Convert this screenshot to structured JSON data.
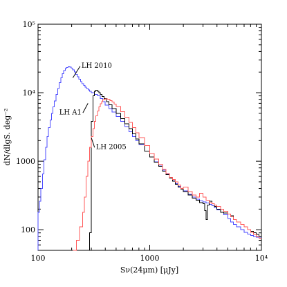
{
  "chart_data": {
    "type": "line",
    "xlabel": "Sν(24μm)  [μJy]",
    "ylabel": "dN/dlgS.  deg⁻²",
    "xscale": "log",
    "yscale": "log",
    "xlim": [
      100,
      10000
    ],
    "ylim": [
      50,
      100000
    ],
    "xticks": [
      {
        "value": 100,
        "label": "100"
      },
      {
        "value": 1000,
        "label": "1000"
      },
      {
        "value": 10000,
        "label": "10⁴"
      }
    ],
    "yticks": [
      {
        "value": 100,
        "label": "100"
      },
      {
        "value": 1000,
        "label": "1000"
      },
      {
        "value": 10000,
        "label": "10⁴"
      },
      {
        "value": 100000,
        "label": "10⁵"
      }
    ],
    "grid": false,
    "legend": "none",
    "series": [
      {
        "name": "LH 2010",
        "color": "#4a4aff",
        "x": [
          100,
          103,
          106,
          110,
          113,
          117,
          120,
          124,
          128,
          132,
          136,
          140,
          145,
          150,
          155,
          160,
          165,
          170,
          175,
          180,
          186,
          192,
          198,
          204,
          211,
          218,
          225,
          232,
          240,
          248,
          256,
          264,
          272,
          281,
          290,
          300,
          320,
          340,
          360,
          380,
          400,
          430,
          460,
          500,
          550,
          600,
          650,
          700,
          750,
          800,
          900,
          1000,
          1100,
          1200,
          1300,
          1400,
          1500,
          1600,
          1700,
          1800,
          1900,
          2000,
          2200,
          2400,
          2600,
          2800,
          3000,
          3200,
          3400,
          3600,
          3800,
          4000,
          4300,
          4600,
          5000,
          5300,
          5600,
          6000,
          6500,
          7000,
          7500,
          8000,
          8500,
          9000,
          9500
        ],
        "y": [
          180,
          260,
          400,
          650,
          1050,
          1600,
          2300,
          3100,
          4000,
          5000,
          6200,
          7600,
          9400,
          11500,
          14000,
          16500,
          19000,
          21000,
          22500,
          23500,
          24000,
          23800,
          22800,
          21500,
          20000,
          18500,
          17000,
          15700,
          14600,
          13600,
          12800,
          12100,
          11500,
          11000,
          10500,
          10000,
          9500,
          9000,
          8200,
          7400,
          6600,
          5900,
          5200,
          4500,
          3800,
          3200,
          2700,
          2300,
          2000,
          1750,
          1400,
          1150,
          980,
          850,
          740,
          650,
          580,
          520,
          470,
          430,
          400,
          370,
          330,
          300,
          280,
          265,
          255,
          245,
          235,
          225,
          210,
          195,
          180,
          165,
          145,
          130,
          120,
          110,
          100,
          92,
          86,
          82,
          80,
          78,
          76
        ]
      },
      {
        "name": "LH A1",
        "color": "#000000",
        "x": [
          280,
          290,
          300,
          310,
          320,
          330,
          340,
          350,
          360,
          375,
          390,
          410,
          430,
          460,
          500,
          550,
          600,
          650,
          700,
          750,
          800,
          900,
          1000,
          1100,
          1200,
          1300,
          1400,
          1500,
          1600,
          1700,
          1800,
          1900,
          2000,
          2200,
          2400,
          2600,
          2800,
          3000,
          3100,
          3200,
          3300,
          3400,
          3600,
          3800,
          4000,
          4300,
          4600,
          5000,
          5300,
          5600,
          6000,
          6500,
          7000,
          7500,
          8000,
          8500,
          9000,
          9500
        ],
        "y": [
          50,
          90,
          3800,
          9000,
          10500,
          10800,
          10500,
          10000,
          9500,
          8800,
          8200,
          7400,
          6700,
          5900,
          5000,
          4200,
          3500,
          3000,
          2500,
          2100,
          1800,
          1400,
          1150,
          970,
          840,
          720,
          640,
          570,
          510,
          460,
          420,
          390,
          360,
          320,
          290,
          270,
          250,
          240,
          190,
          140,
          230,
          260,
          240,
          220,
          200,
          180,
          175,
          170,
          160,
          140,
          130,
          120,
          110,
          100,
          95,
          90,
          85,
          80
        ]
      },
      {
        "name": "LH 2005",
        "color": "#ff5a5a",
        "x": [
          205,
          220,
          235,
          250,
          260,
          270,
          280,
          290,
          300,
          310,
          320,
          330,
          340,
          350,
          360,
          370,
          380,
          390,
          400,
          420,
          440,
          460,
          480,
          500,
          550,
          600,
          650,
          700,
          750,
          800,
          900,
          1000,
          1100,
          1200,
          1300,
          1400,
          1500,
          1600,
          1700,
          1800,
          1900,
          2000,
          2200,
          2400,
          2600,
          2800,
          3000,
          3200,
          3400,
          3600,
          3800,
          4000,
          4300,
          4600,
          5000,
          5300,
          5600,
          6000,
          6500,
          7000,
          7500,
          8000,
          8500,
          9000,
          9500
        ],
        "y": [
          50,
          70,
          110,
          180,
          300,
          600,
          1000,
          1600,
          2300,
          3000,
          3800,
          4600,
          5400,
          6200,
          6900,
          7400,
          7800,
          8000,
          8100,
          8000,
          7700,
          7300,
          6800,
          6300,
          5300,
          4400,
          3700,
          3100,
          2600,
          2200,
          1700,
          1300,
          1080,
          900,
          760,
          660,
          580,
          540,
          500,
          450,
          400,
          420,
          360,
          320,
          300,
          340,
          300,
          270,
          250,
          240,
          230,
          220,
          200,
          185,
          170,
          155,
          140,
          130,
          120,
          110,
          100,
          92,
          85,
          80,
          75
        ]
      }
    ],
    "annotations": [
      {
        "text": "LH 2010",
        "series": 0,
        "text_at": [
          245,
          23000
        ],
        "point_at": [
          205,
          16500
        ]
      },
      {
        "text": "LH A1",
        "series": 1,
        "text_at": [
          155,
          4800
        ],
        "point_at": [
          280,
          7000
        ]
      },
      {
        "text": "LH 2005",
        "series": 2,
        "text_at": [
          330,
          1500
        ],
        "point_at": [
          300,
          2200
        ]
      }
    ]
  }
}
